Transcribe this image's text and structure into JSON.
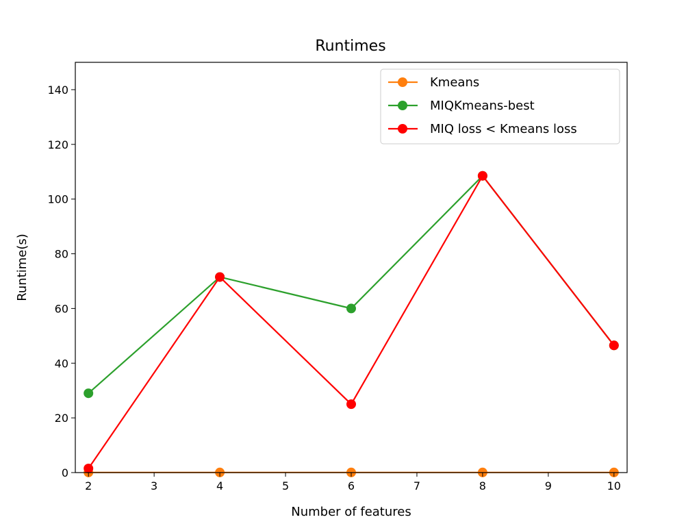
{
  "chart_data": {
    "type": "line",
    "title": "Runtimes",
    "xlabel": "Number of features",
    "ylabel": "Runtime(s)",
    "xlim": [
      1.8,
      10.2
    ],
    "ylim": [
      0,
      150
    ],
    "xticks": [
      2,
      3,
      4,
      5,
      6,
      7,
      8,
      9,
      10
    ],
    "yticks": [
      0,
      20,
      40,
      60,
      80,
      100,
      120,
      140
    ],
    "grid": false,
    "legend_position": "top-right",
    "x": [
      2,
      4,
      6,
      8,
      10
    ],
    "series": [
      {
        "name": "Kmeans",
        "color": "#ff7f0e",
        "values": [
          0.05,
          0.05,
          0.05,
          0.05,
          0.05
        ]
      },
      {
        "name": "MIQKmeans-best",
        "color": "#2ca02c",
        "values": [
          29,
          71.5,
          60,
          108.5,
          46.5
        ]
      },
      {
        "name": "MIQ loss < Kmeans loss",
        "color": "#ff0000",
        "values": [
          1.5,
          71.5,
          25,
          108.5,
          46.5
        ]
      }
    ]
  }
}
